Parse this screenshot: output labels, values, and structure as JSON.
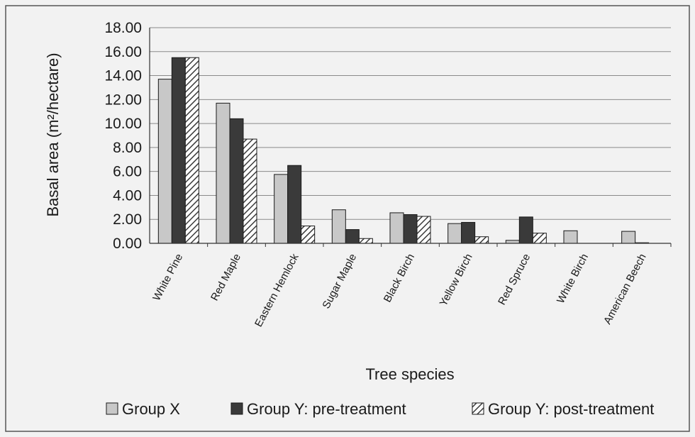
{
  "chart_data": {
    "type": "bar",
    "title": "",
    "xlabel": "Tree species",
    "ylabel": "Basal area (m²/hectare)",
    "ylim": [
      0,
      18
    ],
    "yticks": [
      "0.00",
      "2.00",
      "4.00",
      "6.00",
      "8.00",
      "10.00",
      "12.00",
      "14.00",
      "16.00",
      "18.00"
    ],
    "grid": true,
    "legend_position": "bottom",
    "categories": [
      "White Pine",
      "Red Maple",
      "Eastern Hemlock",
      "Sugar Maple",
      "Black Birch",
      "Yellow Birch",
      "Red Spruce",
      "White Birch",
      "American Beech"
    ],
    "series": [
      {
        "name": "Group X",
        "color": "#c8c8c8",
        "pattern": "solid",
        "values": [
          13.7,
          11.7,
          5.75,
          2.8,
          2.55,
          1.65,
          0.25,
          1.05,
          1.0
        ]
      },
      {
        "name": "Group Y: pre-treatment",
        "color": "#3a3a3a",
        "pattern": "solid",
        "values": [
          15.5,
          10.4,
          6.5,
          1.15,
          2.4,
          1.75,
          2.2,
          0.0,
          0.05
        ]
      },
      {
        "name": "Group Y: post-treatment",
        "color": "#ffffff",
        "pattern": "hatch",
        "values": [
          15.5,
          8.7,
          1.45,
          0.4,
          2.25,
          0.55,
          0.85,
          0.0,
          0.0
        ]
      }
    ]
  }
}
